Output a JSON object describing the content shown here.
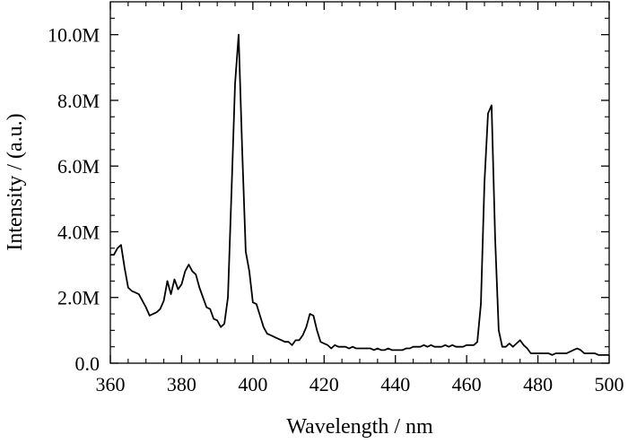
{
  "chart_data": {
    "type": "line",
    "xlabel": "Wavelength / nm",
    "ylabel": "Intensity / (a.u.)",
    "xlim": [
      360,
      500
    ],
    "ylim": [
      0,
      11000000
    ],
    "x_ticks": [
      360,
      380,
      400,
      420,
      440,
      460,
      480,
      500
    ],
    "x_tick_labels": [
      "360",
      "380",
      "400",
      "420",
      "440",
      "460",
      "480",
      "500"
    ],
    "y_ticks": [
      0,
      2000000,
      4000000,
      6000000,
      8000000,
      10000000
    ],
    "y_tick_labels": [
      "0.0",
      "2.0M",
      "4.0M",
      "6.0M",
      "8.0M",
      "10.0M"
    ],
    "x_minor_step": 5,
    "y_minor_step": 500000,
    "grid": false,
    "line_color": "#000000",
    "series": [
      {
        "x": [
          360,
          361,
          362,
          363,
          364,
          365,
          366,
          367,
          368,
          369,
          370,
          371,
          372,
          373,
          374,
          375,
          376,
          377,
          378,
          379,
          380,
          381,
          382,
          383,
          384,
          385,
          386,
          387,
          388,
          389,
          390,
          391,
          392,
          393,
          394,
          395,
          396,
          397,
          398,
          399,
          400,
          401,
          402,
          403,
          404,
          405,
          406,
          407,
          408,
          409,
          410,
          411,
          412,
          413,
          414,
          415,
          416,
          417,
          418,
          419,
          420,
          421,
          422,
          423,
          424,
          425,
          426,
          427,
          428,
          429,
          430,
          431,
          432,
          433,
          434,
          435,
          436,
          437,
          438,
          439,
          440,
          441,
          442,
          443,
          444,
          445,
          446,
          447,
          448,
          449,
          450,
          451,
          452,
          453,
          454,
          455,
          456,
          457,
          458,
          459,
          460,
          461,
          462,
          463,
          464,
          465,
          466,
          467,
          468,
          469,
          470,
          471,
          472,
          473,
          474,
          475,
          476,
          477,
          478,
          479,
          480,
          481,
          482,
          483,
          484,
          485,
          486,
          487,
          488,
          489,
          490,
          491,
          492,
          493,
          494,
          495,
          496,
          497,
          498,
          499,
          500
        ],
        "values": [
          3300000,
          3300000,
          3500000,
          3600000,
          2900000,
          2300000,
          2200000,
          2150000,
          2100000,
          1900000,
          1700000,
          1450000,
          1500000,
          1550000,
          1650000,
          1900000,
          2500000,
          2100000,
          2550000,
          2250000,
          2400000,
          2800000,
          3000000,
          2800000,
          2700000,
          2300000,
          2000000,
          1700000,
          1650000,
          1350000,
          1300000,
          1100000,
          1200000,
          2000000,
          5200000,
          8500000,
          10000000,
          6500000,
          3400000,
          2800000,
          1850000,
          1800000,
          1450000,
          1100000,
          900000,
          850000,
          800000,
          750000,
          700000,
          650000,
          650000,
          550000,
          700000,
          700000,
          850000,
          1100000,
          1500000,
          1450000,
          1000000,
          650000,
          600000,
          550000,
          450000,
          550000,
          500000,
          500000,
          500000,
          450000,
          500000,
          450000,
          450000,
          450000,
          450000,
          450000,
          400000,
          450000,
          400000,
          400000,
          450000,
          400000,
          400000,
          400000,
          400000,
          450000,
          450000,
          500000,
          500000,
          500000,
          550000,
          500000,
          550000,
          500000,
          500000,
          500000,
          550000,
          500000,
          550000,
          500000,
          500000,
          500000,
          550000,
          550000,
          550000,
          650000,
          1800000,
          5500000,
          7600000,
          7850000,
          3800000,
          1000000,
          500000,
          500000,
          600000,
          500000,
          600000,
          700000,
          550000,
          450000,
          300000,
          300000,
          300000,
          300000,
          300000,
          300000,
          250000,
          300000,
          300000,
          300000,
          300000,
          350000,
          400000,
          450000,
          400000,
          300000,
          300000,
          300000,
          300000,
          250000,
          250000,
          250000,
          250000
        ]
      }
    ]
  }
}
